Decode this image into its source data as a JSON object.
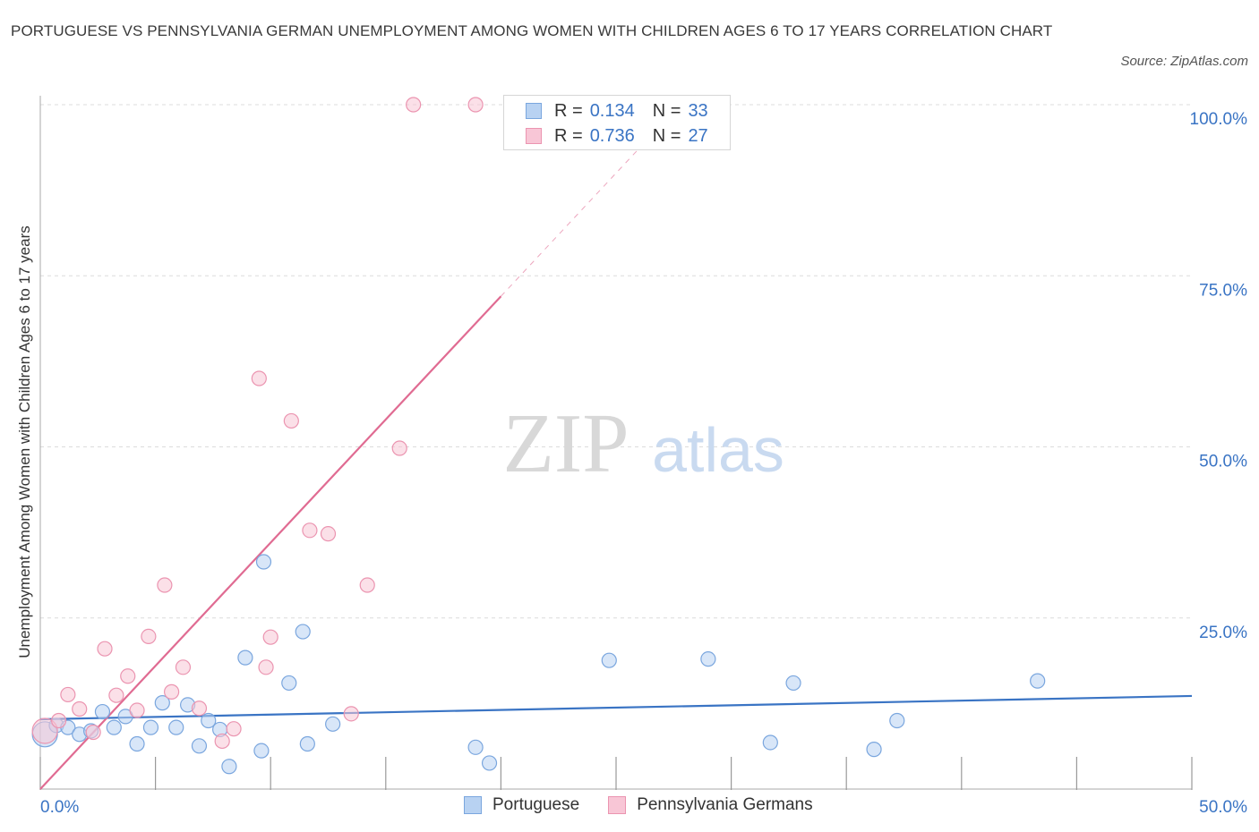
{
  "title": "PORTUGUESE VS PENNSYLVANIA GERMAN UNEMPLOYMENT AMONG WOMEN WITH CHILDREN AGES 6 TO 17 YEARS CORRELATION CHART",
  "source": "Source: ZipAtlas.com",
  "watermark": {
    "zip": "ZIP",
    "atlas": "atlas"
  },
  "colors": {
    "blue": "#3a74c4",
    "blue_fill": "#b8d2f2",
    "blue_stroke": "#7aa6de",
    "pink": "#e06b92",
    "pink_fill": "#f8c6d6",
    "pink_stroke": "#eb94b0",
    "grid": "#dcdcdc",
    "axis_text": "#3a74c4"
  },
  "legend_top": {
    "rows": [
      {
        "r_label": "R =",
        "r_value": "0.134",
        "n_label": "N =",
        "n_value": "33"
      },
      {
        "r_label": "R =",
        "r_value": "0.736",
        "n_label": "N =",
        "n_value": "27"
      }
    ]
  },
  "chart_data": {
    "type": "scatter",
    "title": "PORTUGUESE VS PENNSYLVANIA GERMAN UNEMPLOYMENT AMONG WOMEN WITH CHILDREN AGES 6 TO 17 YEARS CORRELATION CHART",
    "ylabel": "Unemployment Among Women with Children Ages 6 to 17 years",
    "xlabel": "",
    "xlim": [
      0,
      50
    ],
    "ylim": [
      0,
      100
    ],
    "x_tick_labels": [
      "0.0%",
      "50.0%"
    ],
    "y_ticks": [
      25,
      50,
      75,
      100
    ],
    "y_tick_labels": [
      "25.0%",
      "50.0%",
      "75.0%",
      "100.0%"
    ],
    "grid": true,
    "legend_position": "bottom",
    "series": [
      {
        "name": "Portuguese",
        "color": "#3a74c4",
        "R": 0.134,
        "N": 33,
        "trend": {
          "x": [
            0,
            50
          ],
          "y": [
            10.2,
            13.6
          ]
        },
        "points": [
          {
            "x": 0.2,
            "y": 8.0,
            "big": true
          },
          {
            "x": 0.7,
            "y": 9.3
          },
          {
            "x": 1.2,
            "y": 9.0
          },
          {
            "x": 1.7,
            "y": 8.0
          },
          {
            "x": 2.2,
            "y": 8.5
          },
          {
            "x": 2.7,
            "y": 11.3
          },
          {
            "x": 3.2,
            "y": 9.0
          },
          {
            "x": 3.7,
            "y": 10.6
          },
          {
            "x": 4.2,
            "y": 6.6
          },
          {
            "x": 4.8,
            "y": 9.0
          },
          {
            "x": 5.3,
            "y": 12.6
          },
          {
            "x": 5.9,
            "y": 9.0
          },
          {
            "x": 6.4,
            "y": 12.3
          },
          {
            "x": 6.9,
            "y": 6.3
          },
          {
            "x": 7.3,
            "y": 10.0
          },
          {
            "x": 7.8,
            "y": 8.7
          },
          {
            "x": 8.2,
            "y": 3.3
          },
          {
            "x": 8.9,
            "y": 19.2
          },
          {
            "x": 9.6,
            "y": 5.6
          },
          {
            "x": 9.7,
            "y": 33.2
          },
          {
            "x": 10.8,
            "y": 15.5
          },
          {
            "x": 11.4,
            "y": 23.0
          },
          {
            "x": 11.6,
            "y": 6.6
          },
          {
            "x": 12.7,
            "y": 9.5
          },
          {
            "x": 18.9,
            "y": 6.1
          },
          {
            "x": 19.5,
            "y": 3.8
          },
          {
            "x": 24.7,
            "y": 18.8
          },
          {
            "x": 29.0,
            "y": 19.0
          },
          {
            "x": 31.7,
            "y": 6.8
          },
          {
            "x": 32.7,
            "y": 15.5
          },
          {
            "x": 36.2,
            "y": 5.8
          },
          {
            "x": 37.2,
            "y": 10.0
          },
          {
            "x": 43.3,
            "y": 15.8
          }
        ]
      },
      {
        "name": "Pennsylvania Germans",
        "color": "#e06b92",
        "R": 0.736,
        "N": 27,
        "trend": {
          "x": [
            0,
            20
          ],
          "y": [
            0,
            72
          ]
        },
        "trend_extension": {
          "x": [
            20,
            26
          ],
          "y": [
            72,
            93.6
          ]
        },
        "points": [
          {
            "x": 0.2,
            "y": 8.5,
            "big": true
          },
          {
            "x": 0.8,
            "y": 10.0
          },
          {
            "x": 1.2,
            "y": 13.8
          },
          {
            "x": 1.7,
            "y": 11.7
          },
          {
            "x": 2.3,
            "y": 8.3
          },
          {
            "x": 2.8,
            "y": 20.5
          },
          {
            "x": 3.3,
            "y": 13.7
          },
          {
            "x": 3.8,
            "y": 16.5
          },
          {
            "x": 4.2,
            "y": 11.5
          },
          {
            "x": 4.7,
            "y": 22.3
          },
          {
            "x": 5.4,
            "y": 29.8
          },
          {
            "x": 5.7,
            "y": 14.2
          },
          {
            "x": 6.2,
            "y": 17.8
          },
          {
            "x": 6.9,
            "y": 11.8
          },
          {
            "x": 7.9,
            "y": 7.0
          },
          {
            "x": 8.4,
            "y": 8.8
          },
          {
            "x": 9.5,
            "y": 60.0
          },
          {
            "x": 9.8,
            "y": 17.8
          },
          {
            "x": 10.0,
            "y": 22.2
          },
          {
            "x": 10.9,
            "y": 53.8
          },
          {
            "x": 11.7,
            "y": 37.8
          },
          {
            "x": 12.5,
            "y": 37.3
          },
          {
            "x": 13.5,
            "y": 11.0
          },
          {
            "x": 14.2,
            "y": 29.8
          },
          {
            "x": 15.6,
            "y": 49.8
          },
          {
            "x": 16.2,
            "y": 100.0
          },
          {
            "x": 18.9,
            "y": 100.0
          }
        ]
      }
    ]
  }
}
